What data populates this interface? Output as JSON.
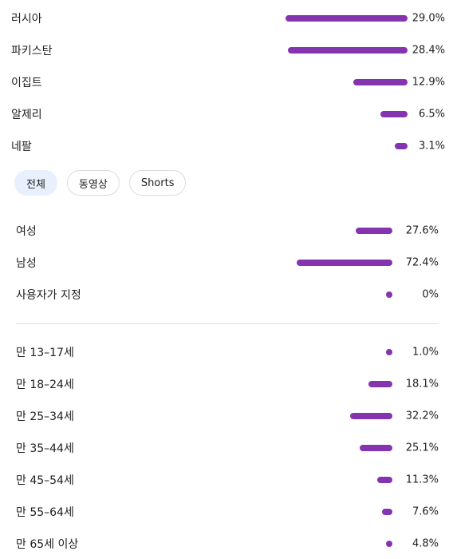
{
  "colors": {
    "bar": "#8534b0",
    "chip_active_bg": "#e8f0fe",
    "divider": "#e0e0e0"
  },
  "countries": [
    {
      "label": "러시아",
      "pct": "29.0%",
      "value": 29.0
    },
    {
      "label": "파키스탄",
      "pct": "28.4%",
      "value": 28.4
    },
    {
      "label": "이집트",
      "pct": "12.9%",
      "value": 12.9
    },
    {
      "label": "알제리",
      "pct": "6.5%",
      "value": 6.5
    },
    {
      "label": "네팔",
      "pct": "3.1%",
      "value": 3.1
    }
  ],
  "filter_chips": [
    {
      "label": "전체",
      "active": true
    },
    {
      "label": "동영상",
      "active": false
    },
    {
      "label": "Shorts",
      "active": false
    }
  ],
  "gender": [
    {
      "label": "여성",
      "pct": "27.6%",
      "value": 27.6
    },
    {
      "label": "남성",
      "pct": "72.4%",
      "value": 72.4
    },
    {
      "label": "사용자가 지정",
      "pct": "0%",
      "value": 0
    }
  ],
  "age": [
    {
      "label": "만 13–17세",
      "pct": "1.0%",
      "value": 1.0
    },
    {
      "label": "만 18–24세",
      "pct": "18.1%",
      "value": 18.1
    },
    {
      "label": "만 25–34세",
      "pct": "32.2%",
      "value": 32.2
    },
    {
      "label": "만 35–44세",
      "pct": "25.1%",
      "value": 25.1
    },
    {
      "label": "만 45–54세",
      "pct": "11.3%",
      "value": 11.3
    },
    {
      "label": "만 55–64세",
      "pct": "7.6%",
      "value": 7.6
    },
    {
      "label": "만 65세 이상",
      "pct": "4.8%",
      "value": 4.8
    }
  ]
}
